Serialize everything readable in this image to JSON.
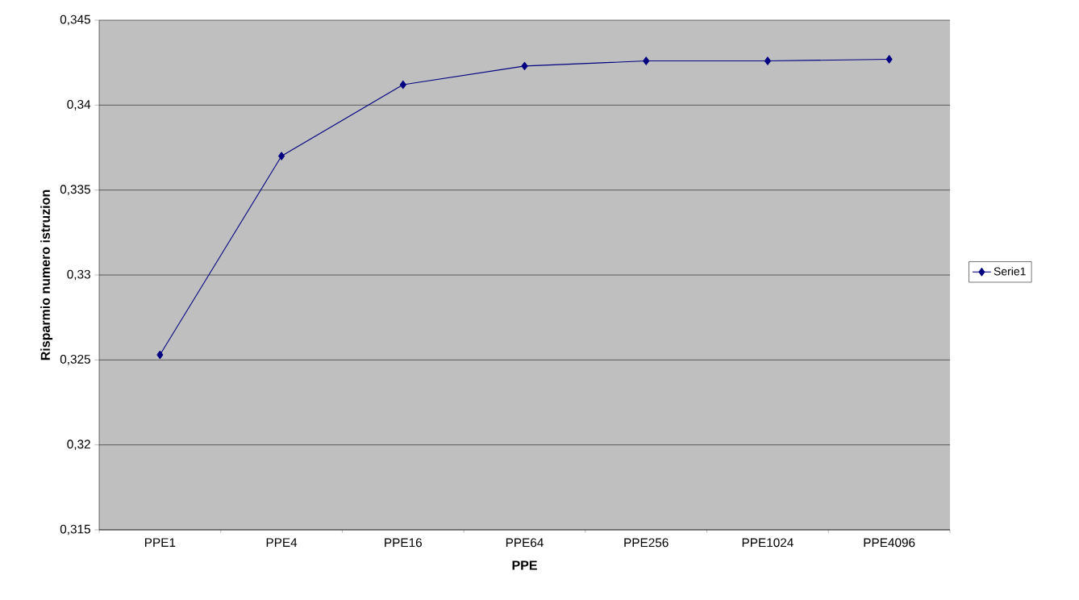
{
  "chart_data": {
    "type": "line",
    "xlabel": "PPE",
    "ylabel": "Risparmio numero istruzion",
    "categories": [
      "PPE1",
      "PPE4",
      "PPE16",
      "PPE64",
      "PPE256",
      "PPE1024",
      "PPE4096"
    ],
    "series": [
      {
        "name": "Serie1",
        "color": "#000080",
        "values": [
          0.3253,
          0.337,
          0.3412,
          0.3423,
          0.3426,
          0.3426,
          0.3427
        ]
      }
    ],
    "ylim": [
      0.315,
      0.345
    ],
    "yticks": [
      {
        "value": 0.315,
        "label": "0,315"
      },
      {
        "value": 0.32,
        "label": "0,32"
      },
      {
        "value": 0.325,
        "label": "0,325"
      },
      {
        "value": 0.33,
        "label": "0,33"
      },
      {
        "value": 0.335,
        "label": "0,335"
      },
      {
        "value": 0.34,
        "label": "0,34"
      },
      {
        "value": 0.345,
        "label": "0,345"
      }
    ],
    "grid": "y",
    "legend": "right",
    "marker": "diamond",
    "line_style": "solid"
  }
}
